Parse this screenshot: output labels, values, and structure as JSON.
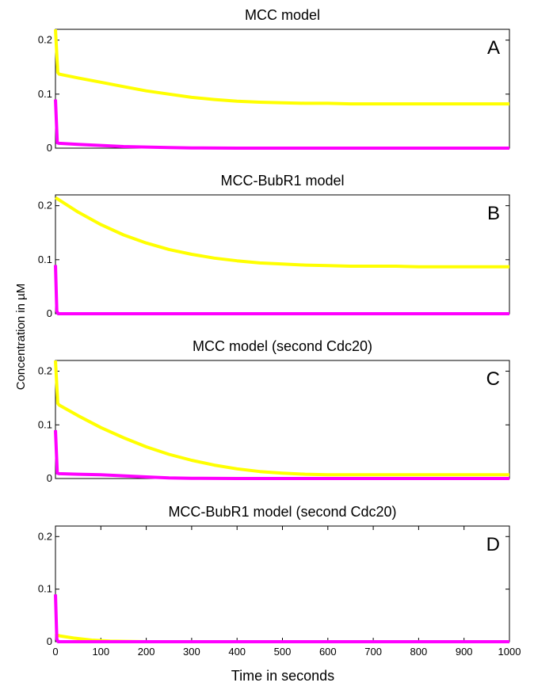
{
  "figure": {
    "ylabel": "Concentration in µM",
    "xlabel": "Time in seconds"
  },
  "colors": {
    "series_a": "#ffff00",
    "series_b": "#ff00ff"
  },
  "chart_data": [
    {
      "type": "line",
      "title": "MCC model",
      "panel_label": "A",
      "xlim": [
        0,
        1000
      ],
      "ylim": [
        0,
        0.22
      ],
      "yticks": [
        "0",
        "0.1",
        "0.2"
      ],
      "xticks": [],
      "series": [
        {
          "color": "#ffff00",
          "x": [
            0,
            5,
            8,
            50,
            100,
            150,
            200,
            250,
            300,
            350,
            400,
            450,
            500,
            550,
            600,
            650,
            700,
            750,
            800,
            850,
            900,
            950,
            1000
          ],
          "y": [
            0.22,
            0.14,
            0.137,
            0.13,
            0.122,
            0.114,
            0.106,
            0.1,
            0.094,
            0.09,
            0.087,
            0.085,
            0.084,
            0.083,
            0.083,
            0.082,
            0.082,
            0.082,
            0.082,
            0.082,
            0.082,
            0.082,
            0.082
          ]
        },
        {
          "color": "#ff00ff",
          "x": [
            0,
            4,
            8,
            50,
            100,
            150,
            200,
            250,
            300,
            400,
            500,
            600,
            700,
            800,
            900,
            1000
          ],
          "y": [
            0.09,
            0.01,
            0.009,
            0.007,
            0.005,
            0.003,
            0.002,
            0.001,
            0.0005,
            0,
            0,
            0,
            0,
            0,
            0,
            0
          ]
        }
      ]
    },
    {
      "type": "line",
      "title": "MCC-BubR1 model",
      "panel_label": "B",
      "xlim": [
        0,
        1000
      ],
      "ylim": [
        0,
        0.22
      ],
      "yticks": [
        "0",
        "0.1",
        "0.2"
      ],
      "xticks": [],
      "series": [
        {
          "color": "#ffff00",
          "x": [
            0,
            50,
            100,
            150,
            200,
            250,
            300,
            350,
            400,
            450,
            500,
            550,
            600,
            650,
            700,
            750,
            800,
            850,
            900,
            950,
            1000
          ],
          "y": [
            0.215,
            0.188,
            0.165,
            0.146,
            0.131,
            0.119,
            0.11,
            0.103,
            0.098,
            0.094,
            0.092,
            0.09,
            0.089,
            0.088,
            0.088,
            0.088,
            0.087,
            0.087,
            0.087,
            0.087,
            0.087
          ]
        },
        {
          "color": "#ff00ff",
          "x": [
            0,
            3,
            6,
            100,
            200,
            400,
            600,
            800,
            1000
          ],
          "y": [
            0.09,
            0.005,
            0,
            0,
            0,
            0,
            0,
            0,
            0
          ]
        }
      ]
    },
    {
      "type": "line",
      "title": "MCC model (second Cdc20)",
      "panel_label": "C",
      "xlim": [
        0,
        1000
      ],
      "ylim": [
        0,
        0.22
      ],
      "yticks": [
        "0",
        "0.1",
        "0.2"
      ],
      "xticks": [],
      "series": [
        {
          "color": "#ffff00",
          "x": [
            0,
            5,
            8,
            50,
            100,
            150,
            200,
            250,
            300,
            350,
            400,
            450,
            500,
            550,
            600,
            650,
            700,
            800,
            900,
            1000
          ],
          "y": [
            0.22,
            0.14,
            0.137,
            0.117,
            0.095,
            0.076,
            0.059,
            0.045,
            0.034,
            0.025,
            0.018,
            0.013,
            0.01,
            0.008,
            0.007,
            0.007,
            0.007,
            0.007,
            0.007,
            0.007
          ]
        },
        {
          "color": "#ff00ff",
          "x": [
            0,
            4,
            8,
            50,
            100,
            150,
            200,
            250,
            300,
            400,
            500,
            600,
            700,
            800,
            900,
            1000
          ],
          "y": [
            0.09,
            0.01,
            0.009,
            0.008,
            0.007,
            0.005,
            0.003,
            0.001,
            0.0005,
            0,
            0,
            0,
            0,
            0,
            0,
            0
          ]
        }
      ]
    },
    {
      "type": "line",
      "title": "MCC-BubR1 model (second Cdc20)",
      "panel_label": "D",
      "xlim": [
        0,
        1000
      ],
      "ylim": [
        0,
        0.22
      ],
      "yticks": [
        "0",
        "0.1",
        "0.2"
      ],
      "xticks": [
        "0",
        "100",
        "200",
        "300",
        "400",
        "500",
        "600",
        "700",
        "800",
        "900",
        "1000"
      ],
      "series": [
        {
          "color": "#ffff00",
          "x": [
            0,
            5,
            10,
            40,
            80,
            120,
            200,
            400,
            600,
            800,
            1000
          ],
          "y": [
            0.015,
            0.012,
            0.011,
            0.007,
            0.003,
            0.001,
            0,
            0,
            0,
            0,
            0
          ]
        },
        {
          "color": "#ff00ff",
          "x": [
            0,
            3,
            6,
            100,
            200,
            400,
            600,
            800,
            1000
          ],
          "y": [
            0.09,
            0.005,
            0,
            0,
            0,
            0,
            0,
            0,
            0
          ]
        }
      ]
    }
  ]
}
